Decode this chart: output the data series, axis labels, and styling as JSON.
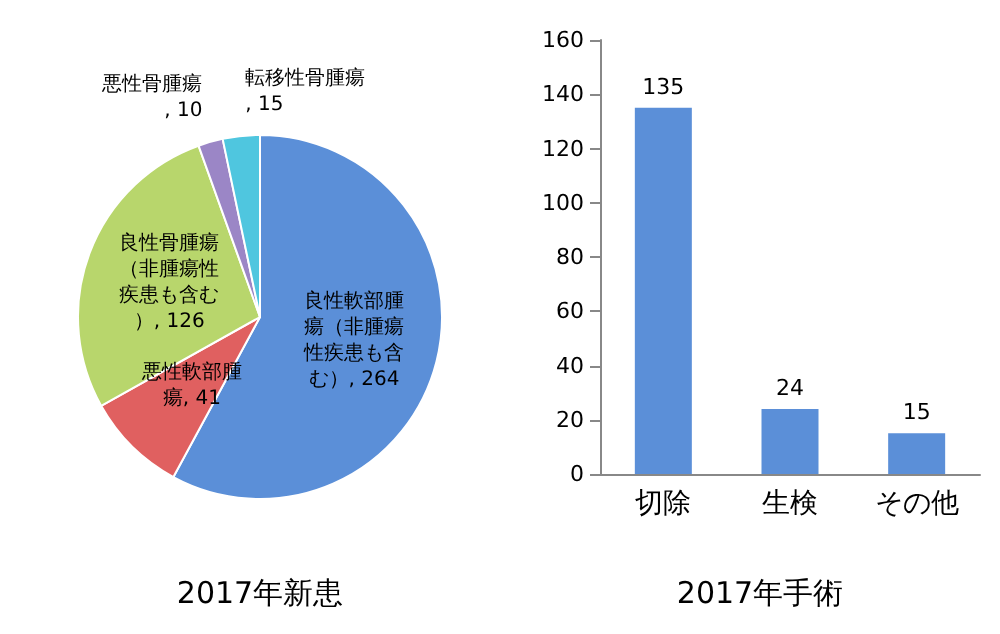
{
  "chart_data": [
    {
      "type": "pie",
      "title": "2017年新患",
      "categories": [
        "良性軟部腫瘍（非腫瘍性疾患も含む）",
        "悪性軟部腫瘍",
        "良性骨腫瘍（非腫瘍性疾患も含む）",
        "悪性骨腫瘍",
        "転移性骨腫瘍"
      ],
      "values": [
        264,
        41,
        126,
        10,
        15
      ],
      "colors": [
        "#5b8fd8",
        "#e06060",
        "#b8d66c",
        "#9b86c6",
        "#4fc6df"
      ],
      "value_labels": [
        ", 264",
        ", 41",
        ", 126",
        ", 10",
        ", 15"
      ],
      "legend": false
    },
    {
      "type": "bar",
      "title": "2017年手術",
      "categories": [
        "切除",
        "生検",
        "その他"
      ],
      "values": [
        135,
        24,
        15
      ],
      "color": "#5b8fd8",
      "ylim": [
        0,
        160
      ],
      "yticks": [
        0,
        20,
        40,
        60,
        80,
        100,
        120,
        140,
        160
      ],
      "data_labels": true,
      "grid": false,
      "legend": false
    }
  ]
}
